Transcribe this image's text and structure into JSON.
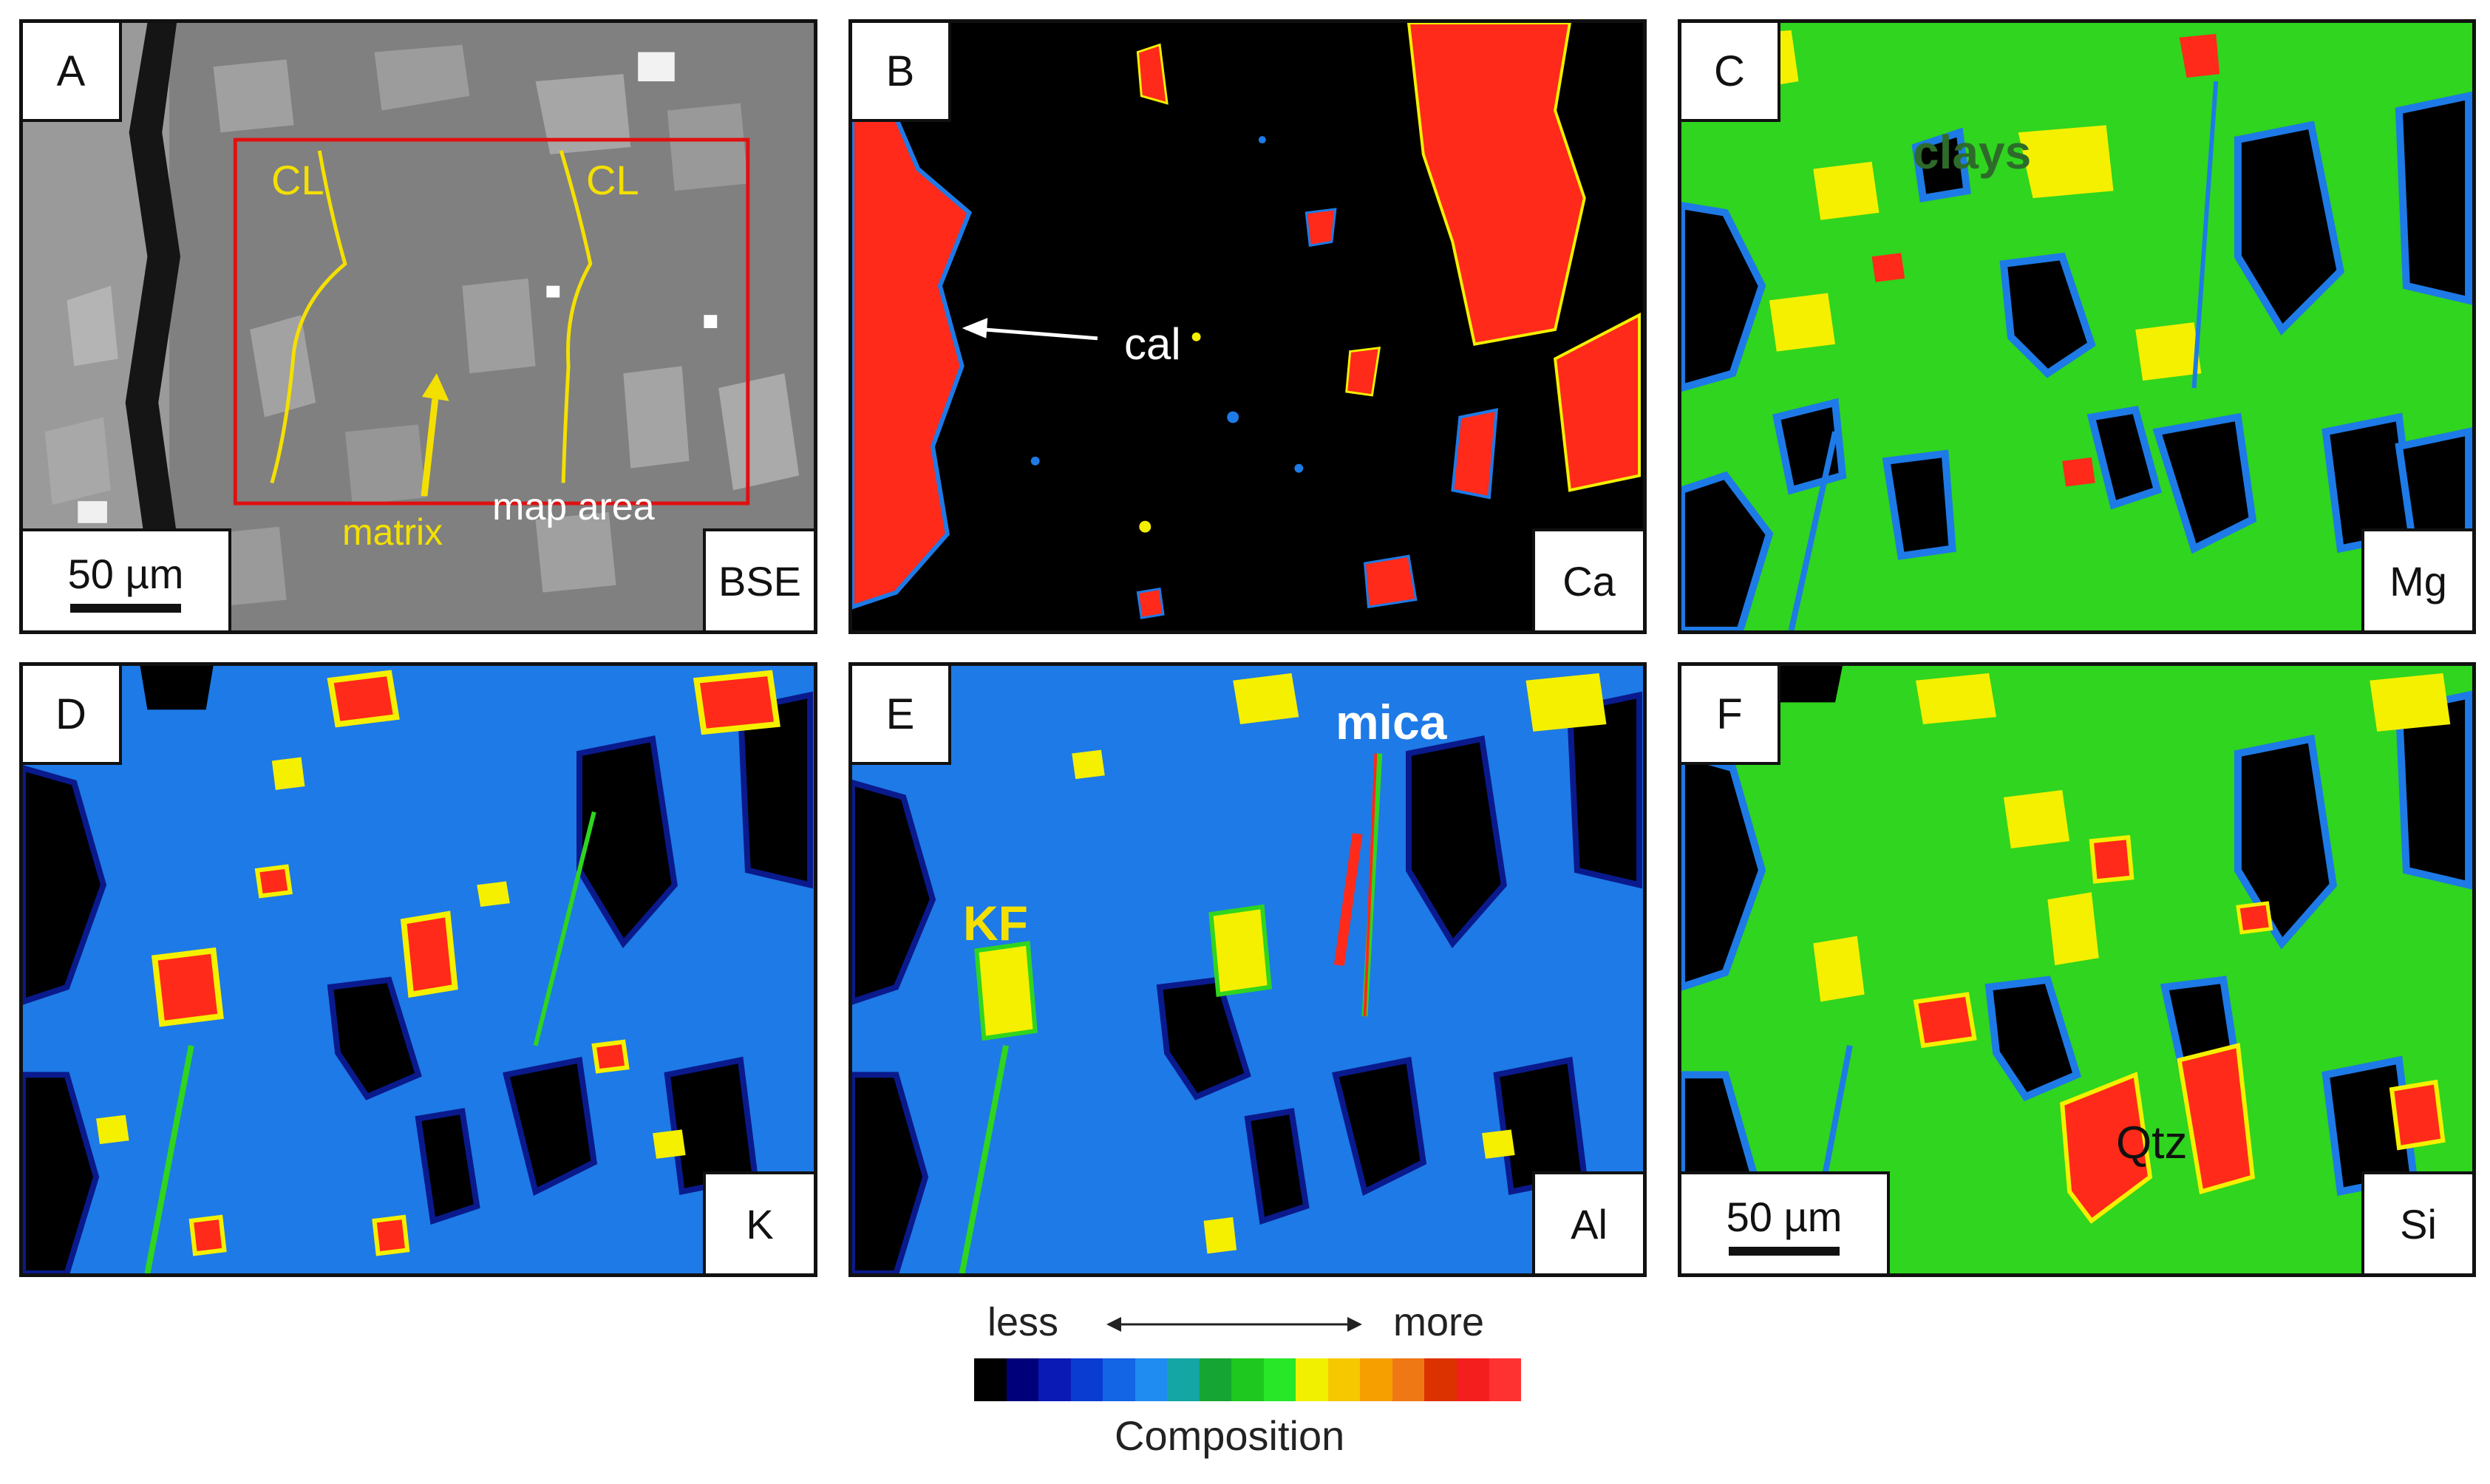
{
  "colors": {
    "panel_border": "#111111",
    "red": "#ff2a1a",
    "yellow": "#f4f000",
    "green": "#2fd51e",
    "blue": "#1e7ae6",
    "dark_blue": "#0a1a8c",
    "bse_gray": "#8a8a8a",
    "map_area_box": "#e01010",
    "clay_text": "#2e6b2a",
    "white": "#ffffff"
  },
  "panels": {
    "a": {
      "letter": "A",
      "element": "BSE",
      "scale": "50 µm",
      "annotations": {
        "cl_left": "CL",
        "cl_right": "CL",
        "matrix": "matrix",
        "map_area": "map area"
      }
    },
    "b": {
      "letter": "B",
      "element": "Ca",
      "annotations": {
        "cal": "cal"
      }
    },
    "c": {
      "letter": "C",
      "element": "Mg",
      "annotations": {
        "clays": "clays"
      }
    },
    "d": {
      "letter": "D",
      "element": "K"
    },
    "e": {
      "letter": "E",
      "element": "Al",
      "annotations": {
        "mica": "mica",
        "kf": "KF"
      }
    },
    "f": {
      "letter": "F",
      "element": "Si",
      "scale": "50 µm",
      "annotations": {
        "qtz": "Qtz"
      }
    }
  },
  "legend": {
    "less": "less",
    "more": "more",
    "title": "Composition",
    "colors": [
      "#000000",
      "#00007a",
      "#0a1ab4",
      "#0a3cd2",
      "#1464e6",
      "#1e8cf0",
      "#14a5a5",
      "#14a532",
      "#1ec81e",
      "#28e628",
      "#f0f000",
      "#f5c800",
      "#f5a000",
      "#f07814",
      "#dc3200",
      "#f51e1e",
      "#ff3232"
    ]
  }
}
